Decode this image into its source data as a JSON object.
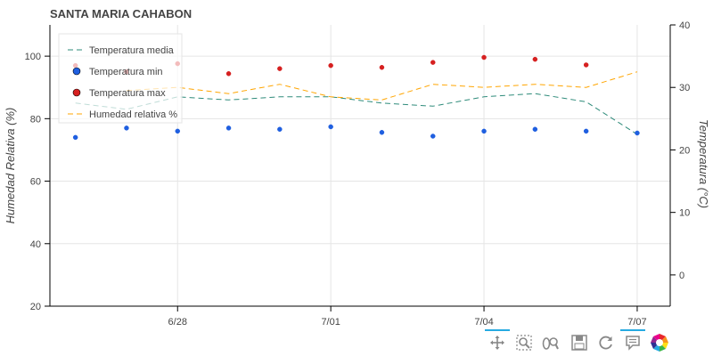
{
  "chart_data": {
    "type": "line",
    "title": "SANTA MARIA CAHABON",
    "xlabel": "",
    "ylabel": "Humedad Relativa (%)",
    "y2label": "Temperatura (°C)",
    "x": [
      "6/26",
      "6/27",
      "6/28",
      "6/29",
      "6/30",
      "7/01",
      "7/02",
      "7/03",
      "7/04",
      "7/05",
      "7/06",
      "7/07"
    ],
    "x_ticks": [
      "6/28",
      "7/01",
      "7/04",
      "7/07"
    ],
    "ylim": [
      20,
      110
    ],
    "y_ticks": [
      20,
      40,
      60,
      80,
      100
    ],
    "y2lim": [
      -5,
      40
    ],
    "y2_ticks": [
      0,
      10,
      20,
      30,
      40
    ],
    "series": [
      {
        "name": "Temperatura media",
        "axis": "right",
        "style": "dashed-line",
        "color": "#2e8b7a",
        "values": [
          27.5,
          26.5,
          28.5,
          28.0,
          28.5,
          28.5,
          27.5,
          27.0,
          28.5,
          29.0,
          27.7,
          22.5
        ]
      },
      {
        "name": "Temperatura min",
        "axis": "right",
        "style": "circle",
        "color": "#1f5fe0",
        "values": [
          22.0,
          23.5,
          23.0,
          23.5,
          23.3,
          23.7,
          22.8,
          22.2,
          23.0,
          23.3,
          23.0,
          22.7
        ]
      },
      {
        "name": "Temperatura max",
        "axis": "right",
        "style": "circle",
        "color": "#d62020",
        "values": [
          33.5,
          32.5,
          33.8,
          32.2,
          33.0,
          33.5,
          33.2,
          34.0,
          34.8,
          34.5,
          33.6,
          null
        ]
      },
      {
        "name": "Humedad relativa %",
        "axis": "left",
        "style": "dashed-line",
        "color": "#ffa500",
        "values": [
          null,
          89,
          90,
          88,
          91,
          87,
          86,
          91,
          90,
          91,
          90,
          95
        ]
      }
    ],
    "legend_position": "top-left",
    "grid": true
  },
  "toolbar": {
    "tools": [
      {
        "name": "pan-tool-icon",
        "active": true
      },
      {
        "name": "box-zoom-tool-icon",
        "active": false
      },
      {
        "name": "wheel-zoom-tool-icon",
        "active": false
      },
      {
        "name": "save-tool-icon",
        "active": false
      },
      {
        "name": "reset-tool-icon",
        "active": false
      },
      {
        "name": "hover-tool-icon",
        "active": true
      },
      {
        "name": "bokeh-logo-icon",
        "active": false
      }
    ]
  }
}
